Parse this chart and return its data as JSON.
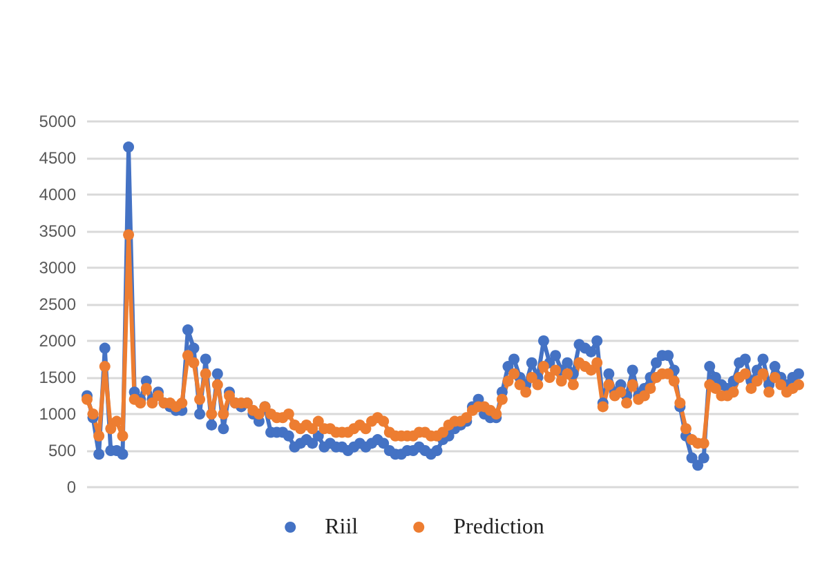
{
  "chart_data": {
    "type": "line",
    "categories": [
      null,
      null,
      null,
      null,
      null,
      null,
      null,
      null,
      null,
      null,
      null,
      null,
      null,
      null,
      null,
      null,
      null,
      null,
      null,
      null,
      null,
      null,
      null,
      null,
      null,
      null,
      null,
      null,
      null,
      null,
      null,
      null,
      null,
      null,
      null,
      null,
      null,
      null,
      null,
      null,
      null,
      null,
      null,
      null,
      null,
      null,
      null,
      null,
      null,
      null,
      null,
      null,
      null,
      null,
      null,
      null,
      null,
      null,
      null,
      null,
      null,
      null,
      null,
      null,
      null,
      null,
      null,
      null,
      null,
      null,
      null,
      null,
      null,
      null,
      null,
      null,
      null,
      null,
      null,
      null,
      null,
      null,
      null,
      null,
      null,
      null,
      null,
      null,
      null,
      null,
      null,
      null,
      null,
      null,
      null,
      null,
      null,
      null,
      null,
      null,
      null,
      null,
      null,
      null,
      null,
      null,
      null,
      null,
      null,
      null,
      null,
      null,
      null,
      null,
      null,
      null,
      null,
      null,
      null,
      null,
      null
    ],
    "series": [
      {
        "name": "Riil",
        "color": "#4472c4",
        "values": [
          1250,
          950,
          450,
          1900,
          500,
          500,
          450,
          4650,
          1300,
          1200,
          1450,
          1200,
          1300,
          1150,
          1100,
          1050,
          1050,
          2150,
          1900,
          1000,
          1750,
          850,
          1550,
          800,
          1300,
          1150,
          1100,
          1150,
          1000,
          900,
          1100,
          750,
          750,
          750,
          700,
          550,
          600,
          650,
          600,
          700,
          550,
          600,
          550,
          550,
          500,
          550,
          600,
          550,
          600,
          650,
          600,
          500,
          450,
          450,
          500,
          500,
          550,
          500,
          450,
          500,
          650,
          700,
          800,
          850,
          900,
          1100,
          1200,
          1000,
          950,
          950,
          1300,
          1650,
          1750,
          1500,
          1400,
          1700,
          1500,
          2000,
          1700,
          1800,
          1600,
          1700,
          1550,
          1950,
          1900,
          1850,
          2000,
          1150,
          1550,
          1300,
          1400,
          1250,
          1600,
          1250,
          1350,
          1500,
          1700,
          1800,
          1800,
          1600,
          1100,
          700,
          400,
          300,
          400,
          1650,
          1500,
          1400,
          1350,
          1450,
          1700,
          1750,
          1450,
          1600,
          1750,
          1400,
          1650,
          1500,
          1400,
          1500,
          1550
        ]
      },
      {
        "name": "Prediction",
        "color": "#ed7d31",
        "values": [
          1200,
          1000,
          700,
          1650,
          800,
          900,
          700,
          3450,
          1200,
          1150,
          1350,
          1150,
          1250,
          1150,
          1150,
          1100,
          1150,
          1800,
          1700,
          1200,
          1550,
          1000,
          1400,
          1000,
          1250,
          1150,
          1150,
          1150,
          1050,
          1000,
          1100,
          1000,
          950,
          950,
          1000,
          850,
          800,
          850,
          800,
          900,
          800,
          800,
          750,
          750,
          750,
          800,
          850,
          800,
          900,
          950,
          900,
          750,
          700,
          700,
          700,
          700,
          750,
          750,
          700,
          700,
          750,
          850,
          900,
          900,
          950,
          1050,
          1100,
          1100,
          1050,
          1000,
          1200,
          1450,
          1550,
          1400,
          1300,
          1500,
          1400,
          1650,
          1500,
          1600,
          1450,
          1550,
          1400,
          1700,
          1650,
          1600,
          1700,
          1100,
          1400,
          1250,
          1300,
          1150,
          1400,
          1200,
          1250,
          1350,
          1500,
          1550,
          1550,
          1450,
          1150,
          800,
          650,
          600,
          600,
          1400,
          1350,
          1250,
          1250,
          1300,
          1500,
          1550,
          1350,
          1450,
          1550,
          1300,
          1500,
          1400,
          1300,
          1350,
          1400
        ]
      }
    ],
    "ylim": [
      0,
      5000
    ],
    "yticks": [
      0,
      500,
      1000,
      1500,
      2000,
      2500,
      3000,
      3500,
      4000,
      4500,
      5000
    ],
    "grid": "y",
    "legend": "bottom",
    "marker": "circle",
    "line_style": "solid"
  }
}
